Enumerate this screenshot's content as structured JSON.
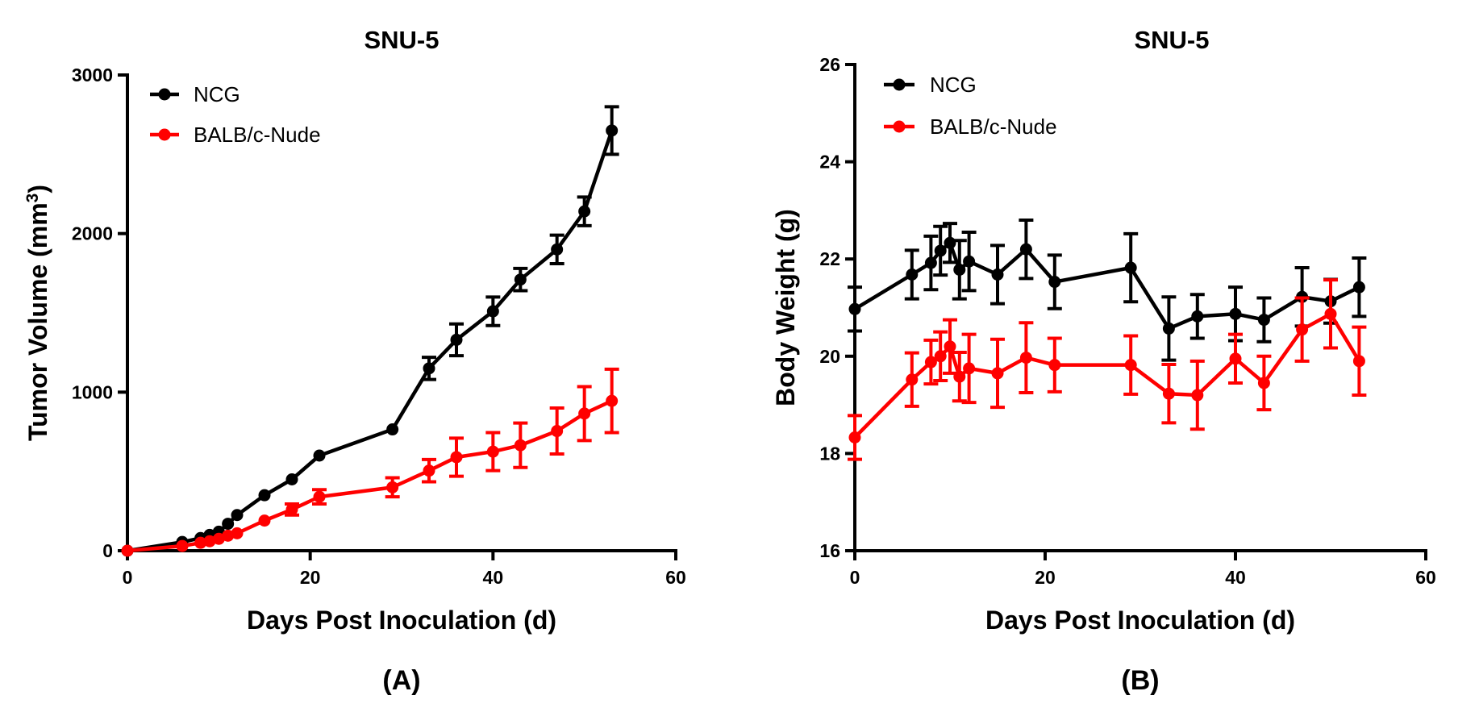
{
  "chart_data": [
    {
      "panel": "(A)",
      "type": "line",
      "title": "SNU-5",
      "xlabel": "Days Post Inoculation (d)",
      "ylabel_main": "Tumor Volume (mm",
      "ylabel_sup": "3",
      "ylabel_end": ")",
      "xlim": [
        0,
        60
      ],
      "ylim": [
        0,
        3000
      ],
      "xticks": [
        0,
        20,
        40,
        60
      ],
      "yticks": [
        0,
        1000,
        2000,
        3000
      ],
      "legend_position": "top-left",
      "series": [
        {
          "name": "NCG",
          "color": "#000000",
          "x": [
            0,
            6,
            8,
            9,
            10,
            11,
            12,
            15,
            18,
            21,
            29,
            33,
            36,
            40,
            43,
            47,
            50,
            53
          ],
          "y": [
            0,
            55,
            80,
            100,
            120,
            170,
            225,
            350,
            450,
            600,
            765,
            1150,
            1330,
            1510,
            1710,
            1900,
            2140,
            2650
          ],
          "err": [
            0,
            0,
            0,
            0,
            0,
            0,
            0,
            0,
            0,
            0,
            0,
            70,
            100,
            90,
            70,
            90,
            90,
            150
          ]
        },
        {
          "name": "BALB/c-Nude",
          "color": "#ff0000",
          "x": [
            0,
            6,
            8,
            9,
            10,
            11,
            12,
            15,
            18,
            21,
            29,
            33,
            36,
            40,
            43,
            47,
            50,
            53
          ],
          "y": [
            0,
            30,
            50,
            60,
            75,
            95,
            110,
            190,
            260,
            340,
            400,
            505,
            590,
            625,
            665,
            755,
            865,
            945
          ],
          "err": [
            0,
            0,
            0,
            0,
            0,
            0,
            0,
            0,
            35,
            45,
            60,
            70,
            120,
            120,
            140,
            145,
            170,
            200
          ]
        }
      ]
    },
    {
      "panel": "(B)",
      "type": "line",
      "title": "SNU-5",
      "xlabel": "Days Post Inoculation (d)",
      "ylabel": "Body Weight (g)",
      "xlim": [
        0,
        60
      ],
      "ylim": [
        16,
        26
      ],
      "xticks": [
        0,
        20,
        40,
        60
      ],
      "yticks": [
        16,
        18,
        20,
        22,
        24,
        26
      ],
      "legend_position": "top-left",
      "series": [
        {
          "name": "NCG",
          "color": "#000000",
          "x": [
            0,
            6,
            8,
            9,
            10,
            11,
            12,
            15,
            18,
            21,
            29,
            33,
            36,
            40,
            43,
            47,
            50,
            53
          ],
          "y": [
            20.97,
            21.68,
            21.92,
            22.17,
            22.33,
            21.78,
            21.95,
            21.68,
            22.2,
            21.53,
            21.82,
            20.57,
            20.82,
            20.87,
            20.75,
            21.22,
            21.13,
            21.42
          ],
          "err": [
            0.45,
            0.5,
            0.55,
            0.5,
            0.4,
            0.6,
            0.6,
            0.6,
            0.6,
            0.55,
            0.7,
            0.65,
            0.45,
            0.55,
            0.45,
            0.6,
            0.45,
            0.6
          ]
        },
        {
          "name": "BALB/c-Nude",
          "color": "#ff0000",
          "x": [
            0,
            6,
            8,
            9,
            10,
            11,
            12,
            15,
            18,
            21,
            29,
            33,
            36,
            40,
            43,
            47,
            50,
            53
          ],
          "y": [
            18.33,
            19.52,
            19.88,
            20.0,
            20.2,
            19.58,
            19.75,
            19.65,
            19.97,
            19.82,
            19.82,
            19.23,
            19.2,
            19.95,
            19.45,
            20.55,
            20.87,
            19.9
          ],
          "err": [
            0.45,
            0.55,
            0.45,
            0.5,
            0.55,
            0.5,
            0.7,
            0.7,
            0.72,
            0.55,
            0.6,
            0.6,
            0.7,
            0.5,
            0.55,
            0.65,
            0.7,
            0.7
          ]
        }
      ]
    }
  ]
}
